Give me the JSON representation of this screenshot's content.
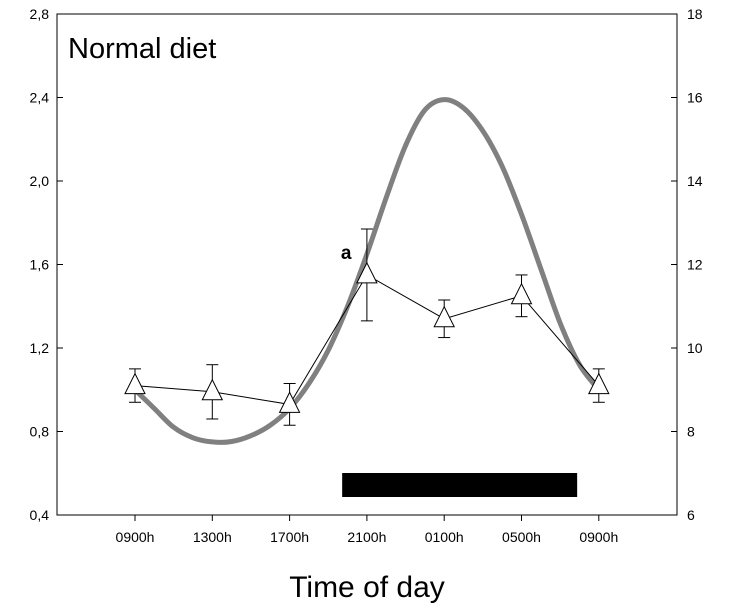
{
  "chart_data": {
    "type": "line",
    "title": "Normal diet",
    "xlabel": "Time of day",
    "ylabel": "",
    "y2label": "",
    "categories": [
      "0900h",
      "1300h",
      "1700h",
      "2100h",
      "0100h",
      "0500h",
      "0900h"
    ],
    "ylim": [
      0.4,
      2.8
    ],
    "yticks": [
      "0,4",
      "0,8",
      "1,2",
      "1,6",
      "2,0",
      "2,4",
      "2,8"
    ],
    "yticks_values": [
      0.4,
      0.8,
      1.2,
      1.6,
      2.0,
      2.4,
      2.8
    ],
    "y2lim": [
      6,
      18
    ],
    "y2ticks": [
      "6",
      "8",
      "10",
      "12",
      "14",
      "16",
      "18"
    ],
    "y2ticks_values": [
      6,
      8,
      10,
      12,
      14,
      16,
      18
    ],
    "grid": false,
    "series": [
      {
        "name": "measured",
        "axis": "left",
        "marker": "open-triangle",
        "color": "#000000",
        "values": [
          1.02,
          0.99,
          0.93,
          1.55,
          1.34,
          1.45,
          1.02
        ],
        "errors": [
          0.08,
          0.13,
          0.1,
          0.22,
          0.09,
          0.1,
          0.08
        ]
      },
      {
        "name": "fitted curve",
        "axis": "right",
        "color": "#808080",
        "x": [
          0,
          0.25,
          0.5,
          0.75,
          1,
          1.25,
          1.5,
          1.75,
          2,
          2.25,
          2.5,
          2.75,
          3,
          3.25,
          3.5,
          3.75,
          4,
          4.25,
          4.5,
          4.75,
          5,
          5.25,
          5.5,
          5.75,
          6
        ],
        "values": [
          9.0,
          8.55,
          8.1,
          7.85,
          7.75,
          7.76,
          7.9,
          8.15,
          8.55,
          9.15,
          9.95,
          11.0,
          12.25,
          13.6,
          14.85,
          15.7,
          15.95,
          15.75,
          15.2,
          14.35,
          13.2,
          11.9,
          10.6,
          9.6,
          9.0
        ]
      }
    ],
    "annotations": [
      {
        "text": "a",
        "category_index": 3
      }
    ],
    "dark_phase": {
      "start": 2.68,
      "end": 5.72,
      "label": "dark phase bar"
    }
  }
}
